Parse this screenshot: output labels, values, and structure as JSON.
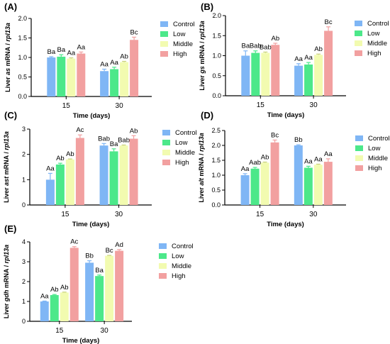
{
  "colors": {
    "Control": "#7FB6F5",
    "Low": "#4CE88A",
    "Middle": "#F2FBB0",
    "High": "#F2A0A0"
  },
  "legend": [
    "Control",
    "Low",
    "Middle",
    "High"
  ],
  "xlabel": "Time (days)",
  "chart_data": [
    {
      "panel": "(A)",
      "type": "bar",
      "gene": "as",
      "ylabel_prefix": "Liver ",
      "ylabel_gene": "as",
      "ylabel_mid": " mRNA / ",
      "ylabel_ref": "rpl13a",
      "categories": [
        "15",
        "30"
      ],
      "ylim": [
        0,
        2.0
      ],
      "yticks": [
        "0.0",
        "0.5",
        "1.0",
        "1.5",
        "2.0"
      ],
      "ytick_values": [
        0,
        0.5,
        1.0,
        1.5,
        2.0
      ],
      "legend_placement": "right",
      "grid": false,
      "series": [
        {
          "name": "Control",
          "values": [
            1.0,
            0.65
          ],
          "errors": [
            0.02,
            0.05
          ],
          "labels": [
            "Ba",
            "Aa"
          ]
        },
        {
          "name": "Low",
          "values": [
            1.02,
            0.7
          ],
          "errors": [
            0.05,
            0.05
          ],
          "labels": [
            "Ba",
            "Aa"
          ]
        },
        {
          "name": "Middle",
          "values": [
            0.97,
            0.88
          ],
          "errors": [
            0.02,
            0.02
          ],
          "labels": [
            "Aa",
            "Ab"
          ]
        },
        {
          "name": "High",
          "values": [
            1.1,
            1.45
          ],
          "errors": [
            0.04,
            0.07
          ],
          "labels": [
            "Aa",
            "Bc"
          ]
        }
      ]
    },
    {
      "panel": "(B)",
      "type": "bar",
      "gene": "gs",
      "ylabel_prefix": "Liver ",
      "ylabel_gene": "gs",
      "ylabel_mid": " mRNA / ",
      "ylabel_ref": "rpl13a",
      "categories": [
        "15",
        "30"
      ],
      "ylim": [
        0,
        2.0
      ],
      "yticks": [
        "0.0",
        "0.5",
        "1.0",
        "1.5",
        "2.0"
      ],
      "ytick_values": [
        0,
        0.5,
        1.0,
        1.5,
        2.0
      ],
      "legend_placement": "right",
      "grid": false,
      "series": [
        {
          "name": "Control",
          "values": [
            1.0,
            0.75
          ],
          "errors": [
            0.12,
            0.05
          ],
          "labels": [
            "Ba",
            "Aa"
          ]
        },
        {
          "name": "Low",
          "values": [
            1.07,
            0.78
          ],
          "errors": [
            0.05,
            0.05
          ],
          "labels": [
            "Bab",
            "Aa"
          ]
        },
        {
          "name": "Middle",
          "values": [
            1.07,
            1.02
          ],
          "errors": [
            0.02,
            0.02
          ],
          "labels": [
            "Bab",
            "Ab"
          ]
        },
        {
          "name": "High",
          "values": [
            1.27,
            1.62
          ],
          "errors": [
            0.04,
            0.1
          ],
          "labels": [
            "Ab",
            "Bc"
          ]
        }
      ]
    },
    {
      "panel": "(C)",
      "type": "bar",
      "gene": "ast",
      "ylabel_prefix": "Liver ",
      "ylabel_gene": "ast",
      "ylabel_mid": " mRNA / ",
      "ylabel_ref": "rpl13a",
      "categories": [
        "15",
        "30"
      ],
      "ylim": [
        0,
        3
      ],
      "yticks": [
        "0",
        "1",
        "2",
        "3"
      ],
      "ytick_values": [
        0,
        1,
        2,
        3
      ],
      "legend_placement": "right",
      "grid": false,
      "series": [
        {
          "name": "Control",
          "values": [
            1.0,
            2.35
          ],
          "errors": [
            0.25,
            0.08
          ],
          "labels": [
            "Aa",
            "Bab"
          ]
        },
        {
          "name": "Low",
          "values": [
            1.6,
            2.12
          ],
          "errors": [
            0.05,
            0.1
          ],
          "labels": [
            "Ab",
            "Ba"
          ]
        },
        {
          "name": "Middle",
          "values": [
            1.8,
            2.35
          ],
          "errors": [
            0.02,
            0.02
          ],
          "labels": [
            "Ab",
            "Bab"
          ]
        },
        {
          "name": "High",
          "values": [
            2.65,
            2.62
          ],
          "errors": [
            0.12,
            0.12
          ],
          "labels": [
            "Ac",
            "Ab"
          ]
        }
      ]
    },
    {
      "panel": "(D)",
      "type": "bar",
      "gene": "alt",
      "ylabel_prefix": "Liver ",
      "ylabel_gene": "alt",
      "ylabel_mid": " mRNA / ",
      "ylabel_ref": "rpl13a",
      "categories": [
        "15",
        "30"
      ],
      "ylim": [
        0,
        2.5
      ],
      "yticks": [
        "0.0",
        "0.5",
        "1.0",
        "1.5",
        "2.0",
        "2.5"
      ],
      "ytick_values": [
        0,
        0.5,
        1.0,
        1.5,
        2.0,
        2.5
      ],
      "legend_placement": "right",
      "grid": false,
      "series": [
        {
          "name": "Control",
          "values": [
            1.0,
            2.0
          ],
          "errors": [
            0.05,
            0.02
          ],
          "labels": [
            "Aa",
            "Bb"
          ]
        },
        {
          "name": "Low",
          "values": [
            1.22,
            1.25
          ],
          "errors": [
            0.04,
            0.05
          ],
          "labels": [
            "Aab",
            "Aa"
          ]
        },
        {
          "name": "Middle",
          "values": [
            1.42,
            1.35
          ],
          "errors": [
            0.02,
            0.02
          ],
          "labels": [
            "Ab",
            "Aa"
          ]
        },
        {
          "name": "High",
          "values": [
            2.1,
            1.45
          ],
          "errors": [
            0.08,
            0.1
          ],
          "labels": [
            "Bc",
            "Aa"
          ]
        }
      ]
    },
    {
      "panel": "(E)",
      "type": "bar",
      "gene": "gdh",
      "ylabel_prefix": "Liver ",
      "ylabel_gene": "gdh",
      "ylabel_mid": " mRNA / ",
      "ylabel_ref": "rpl13a",
      "categories": [
        "15",
        "30"
      ],
      "ylim": [
        0,
        4
      ],
      "yticks": [
        "0",
        "1",
        "2",
        "3",
        "4"
      ],
      "ytick_values": [
        0,
        1,
        2,
        3,
        4
      ],
      "legend_placement": "right",
      "grid": false,
      "series": [
        {
          "name": "Control",
          "values": [
            1.0,
            2.95
          ],
          "errors": [
            0.02,
            0.1
          ],
          "labels": [
            "Aa",
            "Bb"
          ]
        },
        {
          "name": "Low",
          "values": [
            1.32,
            2.28
          ],
          "errors": [
            0.03,
            0.05
          ],
          "labels": [
            "Ab",
            "Ba"
          ]
        },
        {
          "name": "Middle",
          "values": [
            1.45,
            3.3
          ],
          "errors": [
            0.02,
            0.02
          ],
          "labels": [
            "Ab",
            "Bc"
          ]
        },
        {
          "name": "High",
          "values": [
            3.7,
            3.55
          ],
          "errors": [
            0.06,
            0.06
          ],
          "labels": [
            "Ac",
            "Ad"
          ]
        }
      ]
    }
  ]
}
